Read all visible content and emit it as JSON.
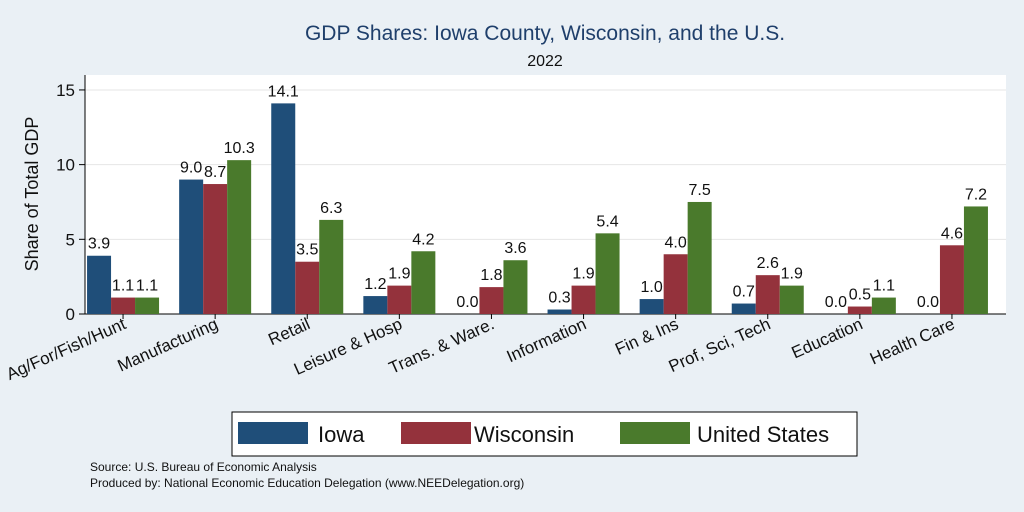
{
  "chart_data": {
    "type": "bar",
    "title": "GDP Shares: Iowa County, Wisconsin, and the U.S.",
    "subtitle": "2022",
    "xlabel": "",
    "ylabel": "Share of Total GDP",
    "ylim": [
      0,
      16
    ],
    "yticks": [
      0,
      5,
      10,
      15
    ],
    "grid": true,
    "legend_position": "bottom",
    "categories": [
      "Ag/For/Fish/Hunt",
      "Manufacturing",
      "Retail",
      "Leisure & Hosp",
      "Trans. & Ware.",
      "Information",
      "Fin & Ins",
      "Prof, Sci, Tech",
      "Education",
      "Health Care"
    ],
    "series": [
      {
        "name": "Iowa",
        "color": "#1f4e79",
        "values": [
          3.9,
          9.0,
          14.1,
          1.2,
          0.0,
          0.3,
          1.0,
          0.7,
          0.0,
          0.0
        ],
        "labels": [
          "3.9",
          "9.0",
          "14.1",
          "1.2",
          "0.0",
          "0.3",
          "1.0",
          "0.7",
          "0.0",
          "0.0"
        ]
      },
      {
        "name": "Wisconsin",
        "color": "#94323c",
        "values": [
          1.1,
          8.7,
          3.5,
          1.9,
          1.8,
          1.9,
          4.0,
          2.6,
          0.5,
          4.6
        ],
        "labels": [
          "1.1",
          "8.7",
          "3.5",
          "1.9",
          "1.8",
          "1.9",
          "4.0",
          "2.6",
          "0.5",
          "4.6"
        ]
      },
      {
        "name": "United States",
        "color": "#4a7a2c",
        "values": [
          1.1,
          10.3,
          6.3,
          4.2,
          3.6,
          5.4,
          7.5,
          1.9,
          1.1,
          7.2
        ],
        "labels": [
          "1.1",
          "10.3",
          "6.3",
          "4.2",
          "3.6",
          "5.4",
          "7.5",
          "1.9",
          "1.1",
          "7.2"
        ]
      }
    ],
    "notes": [
      "Source: U.S. Bureau of Economic Analysis",
      "Produced by: National Economic Education Delegation (www.NEEDelegation.org)"
    ]
  }
}
